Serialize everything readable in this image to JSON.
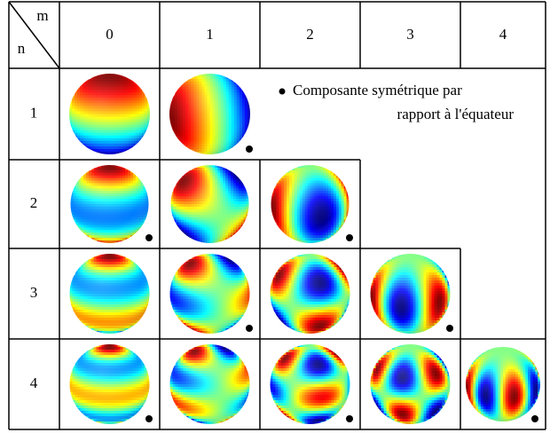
{
  "header": {
    "m_label": "m",
    "n_label": "n",
    "columns": [
      "0",
      "1",
      "2",
      "3",
      "4"
    ]
  },
  "rows": [
    {
      "label": "1",
      "cells": [
        {
          "symmetric": false
        },
        {
          "symmetric": true
        }
      ]
    },
    {
      "label": "2",
      "cells": [
        {
          "symmetric": true
        },
        {
          "symmetric": false
        },
        {
          "symmetric": true
        }
      ]
    },
    {
      "label": "3",
      "cells": [
        {
          "symmetric": false
        },
        {
          "symmetric": true
        },
        {
          "symmetric": false
        },
        {
          "symmetric": true
        }
      ]
    },
    {
      "label": "4",
      "cells": [
        {
          "symmetric": true
        },
        {
          "symmetric": false
        },
        {
          "symmetric": true
        },
        {
          "symmetric": false
        },
        {
          "symmetric": true
        }
      ]
    }
  ],
  "note": {
    "lines": [
      "Composante symétrique par",
      "rapport à l'équateur"
    ]
  }
}
